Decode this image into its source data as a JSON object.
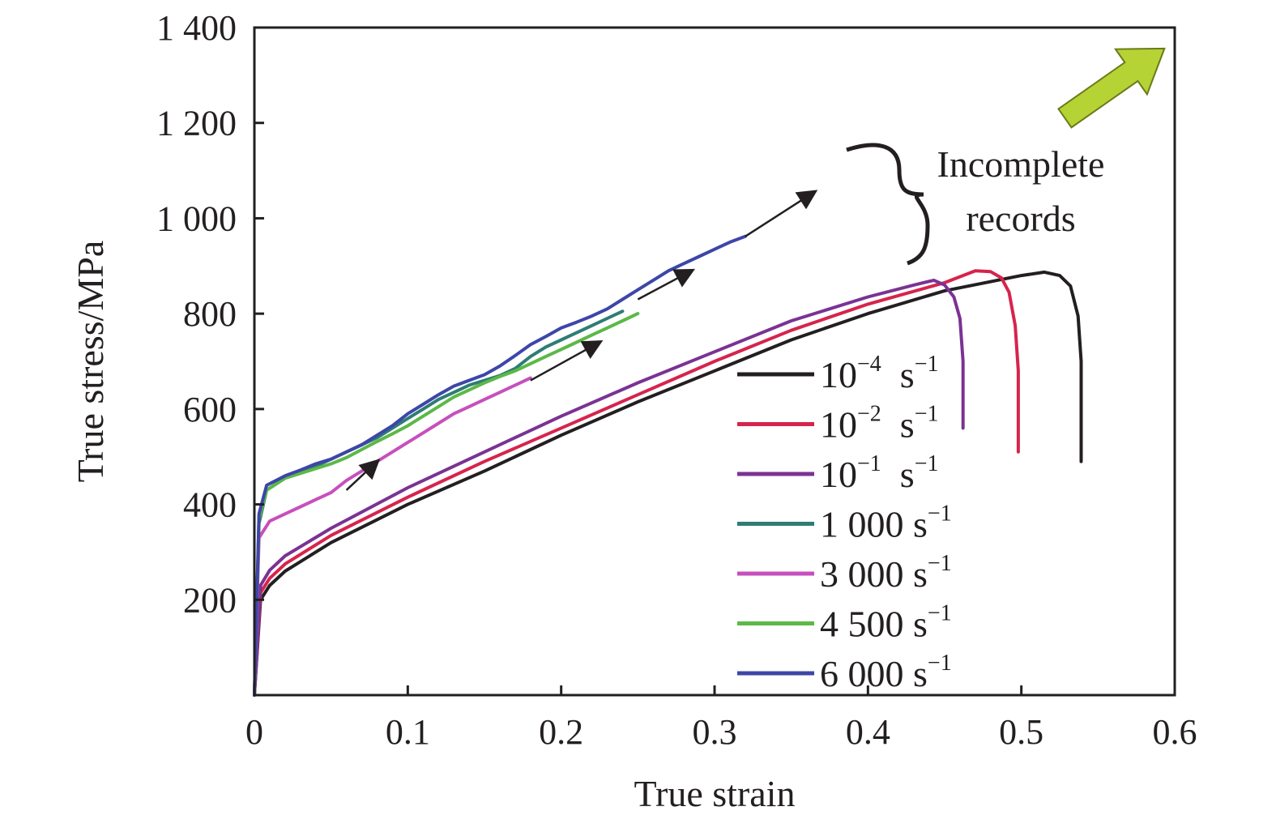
{
  "chart_data": {
    "type": "line",
    "xlabel": "True strain",
    "ylabel": "True stress/MPa",
    "xlim": [
      0,
      0.6
    ],
    "ylim": [
      0,
      1400
    ],
    "x_ticks": [
      {
        "value": 0,
        "label": "0"
      },
      {
        "value": 0.1,
        "label": "0.1"
      },
      {
        "value": 0.2,
        "label": "0.2"
      },
      {
        "value": 0.3,
        "label": "0.3"
      },
      {
        "value": 0.4,
        "label": "0.4"
      },
      {
        "value": 0.5,
        "label": "0.5"
      },
      {
        "value": 0.6,
        "label": "0.6"
      }
    ],
    "y_ticks": [
      {
        "value": 200,
        "label": "200"
      },
      {
        "value": 400,
        "label": "400"
      },
      {
        "value": 600,
        "label": "600"
      },
      {
        "value": 800,
        "label": "800"
      },
      {
        "value": 1000,
        "label": "1 000"
      },
      {
        "value": 1200,
        "label": "1 200"
      },
      {
        "value": 1400,
        "label": "1 400"
      }
    ],
    "grid": false,
    "legend_position": "lower-right",
    "series": [
      {
        "name": "10^-4 s^-1",
        "label_base": "10",
        "label_exp": "−4",
        "label_unit": " s",
        "label_unit_exp": "−1",
        "color": "#231f20",
        "points": [
          [
            0,
            0
          ],
          [
            0.004,
            200
          ],
          [
            0.01,
            230
          ],
          [
            0.02,
            260
          ],
          [
            0.05,
            320
          ],
          [
            0.1,
            400
          ],
          [
            0.15,
            470
          ],
          [
            0.2,
            545
          ],
          [
            0.25,
            615
          ],
          [
            0.3,
            680
          ],
          [
            0.35,
            745
          ],
          [
            0.4,
            800
          ],
          [
            0.45,
            848
          ],
          [
            0.5,
            880
          ],
          [
            0.515,
            887
          ],
          [
            0.525,
            880
          ],
          [
            0.532,
            858
          ],
          [
            0.537,
            795
          ],
          [
            0.539,
            700
          ],
          [
            0.539,
            490
          ]
        ]
      },
      {
        "name": "10^-2 s^-1",
        "label_base": "10",
        "label_exp": "−2",
        "label_unit": " s",
        "label_unit_exp": "−1",
        "color": "#d6244d",
        "points": [
          [
            0,
            0
          ],
          [
            0.004,
            215
          ],
          [
            0.01,
            245
          ],
          [
            0.02,
            275
          ],
          [
            0.05,
            335
          ],
          [
            0.1,
            415
          ],
          [
            0.15,
            490
          ],
          [
            0.2,
            560
          ],
          [
            0.25,
            630
          ],
          [
            0.3,
            700
          ],
          [
            0.35,
            765
          ],
          [
            0.4,
            820
          ],
          [
            0.45,
            865
          ],
          [
            0.47,
            890
          ],
          [
            0.48,
            888
          ],
          [
            0.487,
            875
          ],
          [
            0.492,
            845
          ],
          [
            0.496,
            775
          ],
          [
            0.498,
            680
          ],
          [
            0.498,
            510
          ]
        ]
      },
      {
        "name": "10^-1 s^-1",
        "label_base": "10",
        "label_exp": "−1",
        "label_unit": " s",
        "label_unit_exp": "−1",
        "color": "#7b3294",
        "points": [
          [
            0,
            0
          ],
          [
            0.004,
            230
          ],
          [
            0.01,
            262
          ],
          [
            0.02,
            292
          ],
          [
            0.05,
            350
          ],
          [
            0.1,
            435
          ],
          [
            0.15,
            510
          ],
          [
            0.2,
            585
          ],
          [
            0.25,
            655
          ],
          [
            0.3,
            720
          ],
          [
            0.35,
            785
          ],
          [
            0.4,
            835
          ],
          [
            0.43,
            860
          ],
          [
            0.443,
            870
          ],
          [
            0.45,
            860
          ],
          [
            0.456,
            835
          ],
          [
            0.46,
            790
          ],
          [
            0.462,
            700
          ],
          [
            0.462,
            560
          ]
        ]
      },
      {
        "name": "1 000 s^-1",
        "label_base": "1 000",
        "label_exp": "",
        "label_unit": " s",
        "label_unit_exp": "−1",
        "color": "#2e7d74",
        "points": [
          [
            0,
            0
          ],
          [
            0.003,
            360
          ],
          [
            0.008,
            430
          ],
          [
            0.02,
            455
          ],
          [
            0.03,
            470
          ],
          [
            0.04,
            480
          ],
          [
            0.05,
            495
          ],
          [
            0.06,
            510
          ],
          [
            0.07,
            525
          ],
          [
            0.08,
            540
          ],
          [
            0.09,
            560
          ],
          [
            0.1,
            580
          ],
          [
            0.11,
            600
          ],
          [
            0.12,
            620
          ],
          [
            0.13,
            635
          ],
          [
            0.14,
            650
          ],
          [
            0.15,
            660
          ],
          [
            0.16,
            670
          ],
          [
            0.17,
            685
          ],
          [
            0.18,
            710
          ],
          [
            0.19,
            730
          ],
          [
            0.2,
            745
          ],
          [
            0.21,
            760
          ],
          [
            0.22,
            775
          ],
          [
            0.23,
            790
          ],
          [
            0.24,
            805
          ]
        ]
      },
      {
        "name": "3 000 s^-1",
        "label_base": "3 000",
        "label_exp": "",
        "label_unit": " s",
        "label_unit_exp": "−1",
        "color": "#c74fbd",
        "points": [
          [
            0,
            0
          ],
          [
            0.003,
            330
          ],
          [
            0.01,
            365
          ],
          [
            0.02,
            380
          ],
          [
            0.03,
            395
          ],
          [
            0.04,
            410
          ],
          [
            0.05,
            425
          ],
          [
            0.06,
            450
          ],
          [
            0.07,
            470
          ],
          [
            0.08,
            490
          ],
          [
            0.09,
            510
          ],
          [
            0.1,
            530
          ],
          [
            0.11,
            550
          ],
          [
            0.12,
            570
          ],
          [
            0.13,
            590
          ],
          [
            0.14,
            605
          ],
          [
            0.15,
            620
          ],
          [
            0.16,
            635
          ],
          [
            0.17,
            650
          ],
          [
            0.18,
            665
          ]
        ]
      },
      {
        "name": "4 500 s^-1",
        "label_base": "4 500",
        "label_exp": "",
        "label_unit": " s",
        "label_unit_exp": "−1",
        "color": "#5cb847",
        "points": [
          [
            0,
            0
          ],
          [
            0.003,
            370
          ],
          [
            0.008,
            430
          ],
          [
            0.02,
            455
          ],
          [
            0.03,
            465
          ],
          [
            0.04,
            475
          ],
          [
            0.05,
            485
          ],
          [
            0.06,
            498
          ],
          [
            0.07,
            515
          ],
          [
            0.08,
            532
          ],
          [
            0.09,
            548
          ],
          [
            0.1,
            565
          ],
          [
            0.11,
            585
          ],
          [
            0.12,
            605
          ],
          [
            0.13,
            625
          ],
          [
            0.14,
            640
          ],
          [
            0.15,
            655
          ],
          [
            0.16,
            668
          ],
          [
            0.17,
            680
          ],
          [
            0.18,
            695
          ],
          [
            0.19,
            710
          ],
          [
            0.2,
            725
          ],
          [
            0.21,
            740
          ],
          [
            0.22,
            755
          ],
          [
            0.23,
            770
          ],
          [
            0.24,
            785
          ],
          [
            0.25,
            800
          ]
        ]
      },
      {
        "name": "6 000 s^-1",
        "label_base": "6 000",
        "label_exp": "",
        "label_unit": " s",
        "label_unit_exp": "−1",
        "color": "#3d46a8",
        "points": [
          [
            0,
            0
          ],
          [
            0.003,
            380
          ],
          [
            0.008,
            440
          ],
          [
            0.02,
            460
          ],
          [
            0.03,
            472
          ],
          [
            0.04,
            485
          ],
          [
            0.05,
            495
          ],
          [
            0.06,
            510
          ],
          [
            0.07,
            525
          ],
          [
            0.08,
            545
          ],
          [
            0.09,
            565
          ],
          [
            0.1,
            590
          ],
          [
            0.11,
            610
          ],
          [
            0.12,
            630
          ],
          [
            0.13,
            648
          ],
          [
            0.14,
            660
          ],
          [
            0.15,
            672
          ],
          [
            0.16,
            690
          ],
          [
            0.17,
            712
          ],
          [
            0.18,
            735
          ],
          [
            0.19,
            752
          ],
          [
            0.2,
            770
          ],
          [
            0.21,
            782
          ],
          [
            0.22,
            795
          ],
          [
            0.23,
            810
          ],
          [
            0.24,
            830
          ],
          [
            0.25,
            850
          ],
          [
            0.26,
            870
          ],
          [
            0.27,
            890
          ],
          [
            0.28,
            905
          ],
          [
            0.29,
            920
          ],
          [
            0.3,
            935
          ],
          [
            0.31,
            950
          ],
          [
            0.32,
            962
          ]
        ]
      }
    ],
    "extension_arrows": [
      {
        "from": [
          0.06,
          430
        ],
        "to": [
          0.08,
          490
        ],
        "color": "#231f20"
      },
      {
        "from": [
          0.18,
          660
        ],
        "to": [
          0.225,
          740
        ],
        "color": "#231f20"
      },
      {
        "from": [
          0.25,
          830
        ],
        "to": [
          0.285,
          890
        ],
        "color": "#231f20"
      },
      {
        "from": [
          0.32,
          962
        ],
        "to": [
          0.365,
          1055
        ],
        "color": "#231f20"
      }
    ],
    "annotation": {
      "text_line1": "Incomplete",
      "text_line2": "records"
    },
    "corner_arrow_color": "#b5d334"
  }
}
